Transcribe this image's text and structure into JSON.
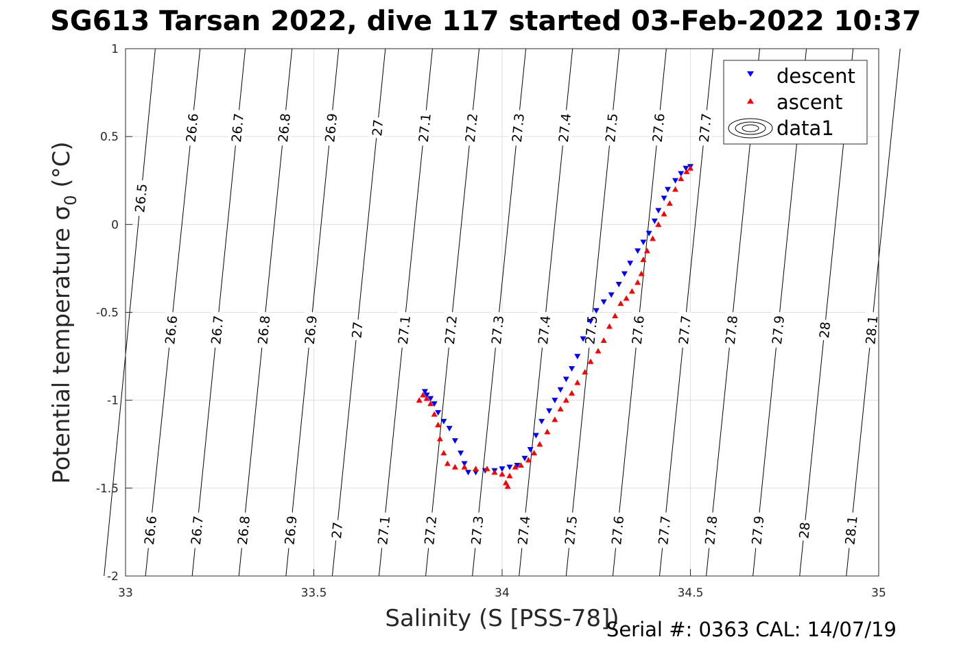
{
  "chart_data": {
    "type": "scatter",
    "title": "SG613 Tarsan 2022, dive 117 started 03-Feb-2022 10:37",
    "xlabel": "Salinity (S [PSS-78])",
    "ylabel_main": "Potential temperature ",
    "ylabel_sigma": "σ",
    "ylabel_sub": "0",
    "ylabel_unit": " (°C)",
    "footer": "Serial #: 0363  CAL: 14/07/19",
    "xlim": [
      33,
      35
    ],
    "ylim": [
      -2,
      1
    ],
    "xticks": [
      33,
      33.5,
      34,
      34.5,
      35
    ],
    "yticks": [
      1,
      0.5,
      0,
      -0.5,
      -1,
      -1.5,
      -2
    ],
    "xtick_labels": [
      "33",
      "33.5",
      "34",
      "34.5",
      "35"
    ],
    "ytick_labels": [
      "1",
      "0.5",
      "0",
      "-0.5",
      "-1",
      "-1.5",
      "-2"
    ],
    "grid": true,
    "legend_position": "top-right",
    "legend": [
      {
        "name": "descent",
        "marker": "triangle-down",
        "color": "#0000ff"
      },
      {
        "name": "ascent",
        "marker": "triangle-up",
        "color": "#ff0000"
      },
      {
        "name": "data1",
        "marker": "contour-ellipses",
        "color": "#000000"
      }
    ],
    "isopycnals": [
      {
        "level": 26.5,
        "label": "26.5",
        "s_at_top": 33.079,
        "s_at_bottom": 32.943
      },
      {
        "level": 26.6,
        "label": "26.6",
        "s_at_top": 33.198,
        "s_at_bottom": 33.053
      },
      {
        "level": 26.7,
        "label": "26.7",
        "s_at_top": 33.318,
        "s_at_bottom": 33.177
      },
      {
        "level": 26.8,
        "label": "26.8",
        "s_at_top": 33.442,
        "s_at_bottom": 33.301
      },
      {
        "level": 26.9,
        "label": "26.9",
        "s_at_top": 33.566,
        "s_at_bottom": 33.426
      },
      {
        "level": 27,
        "label": "27",
        "s_at_top": 33.69,
        "s_at_bottom": 33.549
      },
      {
        "level": 27.1,
        "label": "27.1",
        "s_at_top": 33.815,
        "s_at_bottom": 33.673
      },
      {
        "level": 27.2,
        "label": "27.2",
        "s_at_top": 33.939,
        "s_at_bottom": 33.797
      },
      {
        "level": 27.3,
        "label": "27.3",
        "s_at_top": 34.063,
        "s_at_bottom": 33.921
      },
      {
        "level": 27.4,
        "label": "27.4",
        "s_at_top": 34.187,
        "s_at_bottom": 34.045
      },
      {
        "level": 27.5,
        "label": "27.5",
        "s_at_top": 34.311,
        "s_at_bottom": 34.17
      },
      {
        "level": 27.6,
        "label": "27.6",
        "s_at_top": 34.436,
        "s_at_bottom": 34.294
      },
      {
        "level": 27.7,
        "label": "27.7",
        "s_at_top": 34.56,
        "s_at_bottom": 34.418
      },
      {
        "level": 27.8,
        "label": "27.8",
        "s_at_top": 34.684,
        "s_at_bottom": 34.542
      },
      {
        "level": 27.9,
        "label": "27.9",
        "s_at_top": 34.808,
        "s_at_bottom": 34.666
      },
      {
        "level": 28,
        "label": "28",
        "s_at_top": 34.932,
        "s_at_bottom": 34.79
      },
      {
        "level": 28.1,
        "label": "28.1",
        "s_at_top": 35.057,
        "s_at_bottom": 34.914
      }
    ],
    "contour_label_rows": [
      {
        "theta": 0.55,
        "levels": [
          26.6,
          26.7,
          26.8,
          26.9,
          27,
          27.1,
          27.2,
          27.3,
          27.4,
          27.5,
          27.6,
          27.7
        ]
      },
      {
        "theta": 0.15,
        "levels": [
          26.5
        ]
      },
      {
        "theta": -0.6,
        "levels": [
          26.6,
          26.7,
          26.8,
          26.9,
          27,
          27.1,
          27.2,
          27.3,
          27.4,
          27.5,
          27.6,
          27.7,
          27.8,
          27.9,
          28,
          28.1
        ]
      },
      {
        "theta": -1.74,
        "levels": [
          26.6,
          26.7,
          26.8,
          26.9,
          27,
          27.1,
          27.2,
          27.3,
          27.4,
          27.5,
          27.6,
          27.7,
          27.8,
          27.9,
          28,
          28.1
        ]
      }
    ],
    "series": [
      {
        "name": "descent",
        "marker": "triangle-down",
        "color": "#0000ff",
        "points": [
          [
            34.5,
            0.33
          ],
          [
            34.488,
            0.32
          ],
          [
            34.475,
            0.29
          ],
          [
            34.46,
            0.25
          ],
          [
            34.44,
            0.2
          ],
          [
            34.43,
            0.15
          ],
          [
            34.415,
            0.08
          ],
          [
            34.405,
            0.02
          ],
          [
            34.39,
            -0.05
          ],
          [
            34.375,
            -0.1
          ],
          [
            34.36,
            -0.15
          ],
          [
            34.34,
            -0.22
          ],
          [
            34.325,
            -0.28
          ],
          [
            34.31,
            -0.34
          ],
          [
            34.29,
            -0.4
          ],
          [
            34.27,
            -0.44
          ],
          [
            34.25,
            -0.49
          ],
          [
            34.235,
            -0.55
          ],
          [
            34.215,
            -0.65
          ],
          [
            34.2,
            -0.75
          ],
          [
            34.185,
            -0.82
          ],
          [
            34.17,
            -0.88
          ],
          [
            34.155,
            -0.94
          ],
          [
            34.14,
            -1.0
          ],
          [
            34.125,
            -1.06
          ],
          [
            34.105,
            -1.12
          ],
          [
            34.09,
            -1.2
          ],
          [
            34.075,
            -1.28
          ],
          [
            34.06,
            -1.33
          ],
          [
            34.04,
            -1.37
          ],
          [
            34.02,
            -1.38
          ],
          [
            34.0,
            -1.39
          ],
          [
            33.98,
            -1.4
          ],
          [
            33.955,
            -1.4
          ],
          [
            33.93,
            -1.41
          ],
          [
            33.91,
            -1.41
          ],
          [
            33.9,
            -1.36
          ],
          [
            33.89,
            -1.3
          ],
          [
            33.875,
            -1.23
          ],
          [
            33.86,
            -1.16
          ],
          [
            33.845,
            -1.12
          ],
          [
            33.83,
            -1.07
          ],
          [
            33.82,
            -1.02
          ],
          [
            33.81,
            -0.99
          ],
          [
            33.8,
            -0.97
          ],
          [
            33.795,
            -0.95
          ]
        ]
      },
      {
        "name": "ascent",
        "marker": "triangle-up",
        "color": "#ff0000",
        "points": [
          [
            34.5,
            0.32
          ],
          [
            34.49,
            0.3
          ],
          [
            34.475,
            0.26
          ],
          [
            34.46,
            0.2
          ],
          [
            34.445,
            0.12
          ],
          [
            34.43,
            0.06
          ],
          [
            34.415,
            0.0
          ],
          [
            34.4,
            -0.08
          ],
          [
            34.385,
            -0.15
          ],
          [
            34.375,
            -0.2
          ],
          [
            34.37,
            -0.28
          ],
          [
            34.36,
            -0.33
          ],
          [
            34.345,
            -0.38
          ],
          [
            34.33,
            -0.42
          ],
          [
            34.315,
            -0.45
          ],
          [
            34.3,
            -0.52
          ],
          [
            34.285,
            -0.58
          ],
          [
            34.27,
            -0.66
          ],
          [
            34.255,
            -0.72
          ],
          [
            34.235,
            -0.78
          ],
          [
            34.22,
            -0.84
          ],
          [
            34.2,
            -0.9
          ],
          [
            34.185,
            -0.96
          ],
          [
            34.17,
            -1.0
          ],
          [
            34.155,
            -1.05
          ],
          [
            34.14,
            -1.11
          ],
          [
            34.12,
            -1.18
          ],
          [
            34.1,
            -1.25
          ],
          [
            34.085,
            -1.3
          ],
          [
            34.07,
            -1.34
          ],
          [
            34.05,
            -1.37
          ],
          [
            34.035,
            -1.38
          ],
          [
            34.02,
            -1.43
          ],
          [
            34.015,
            -1.49
          ],
          [
            34.01,
            -1.47
          ],
          [
            34.0,
            -1.42
          ],
          [
            33.98,
            -1.41
          ],
          [
            33.96,
            -1.39
          ],
          [
            33.93,
            -1.39
          ],
          [
            33.9,
            -1.38
          ],
          [
            33.875,
            -1.38
          ],
          [
            33.855,
            -1.36
          ],
          [
            33.845,
            -1.3
          ],
          [
            33.835,
            -1.22
          ],
          [
            33.83,
            -1.14
          ],
          [
            33.82,
            -1.08
          ],
          [
            33.81,
            -1.02
          ],
          [
            33.8,
            -0.99
          ],
          [
            33.79,
            -0.97
          ],
          [
            33.78,
            -1.0
          ]
        ]
      }
    ]
  }
}
